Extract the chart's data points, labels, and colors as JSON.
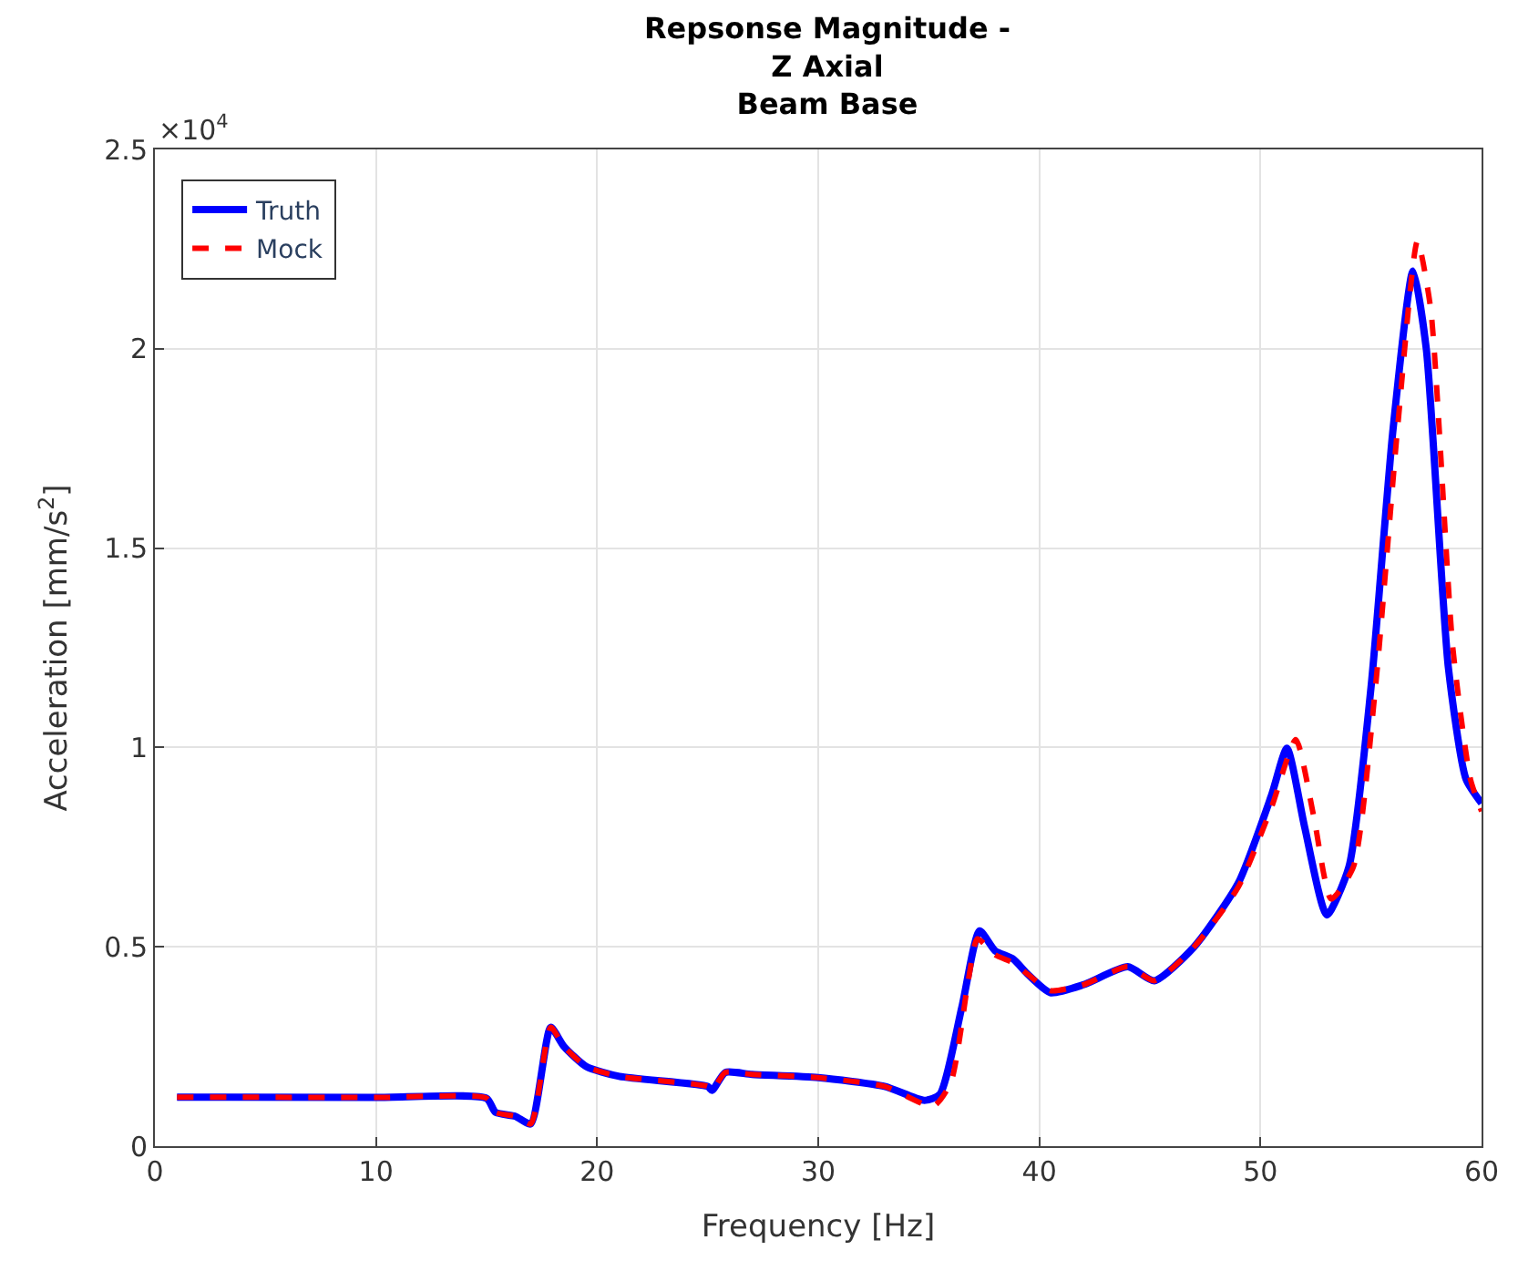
{
  "chart_data": {
    "type": "line",
    "title": "Repsonse Magnitude -\nZ Axial\nBeam Base",
    "xlabel": "Frequency [Hz]",
    "ylabel": "Acceleration [mm/s$^{2}$]",
    "annotations": [
      "×10$^{4}$"
    ],
    "xlim": [
      0,
      60
    ],
    "xticks": [
      0,
      10,
      20,
      30,
      40,
      50,
      60
    ],
    "ylim": [
      0,
      2.5
    ],
    "yticks": [
      0,
      0.5,
      1,
      1.5,
      2,
      2.5
    ],
    "grid": true,
    "legend": "top left",
    "series": [
      {
        "name": "Truth",
        "color": "#0000ff",
        "line_style": "solid",
        "x": [
          1,
          10,
          15,
          15.4,
          16.3,
          17.0,
          17.9,
          18.5,
          19.5,
          21,
          25,
          25.2,
          25.8,
          27,
          30,
          33,
          34.8,
          35.5,
          36.5,
          37.3,
          38,
          38.8,
          39.5,
          40.5,
          42,
          44,
          45.2,
          47,
          49,
          50.5,
          51.2,
          52,
          53,
          54,
          55,
          56,
          56.9,
          57.5,
          58.5,
          59.3,
          60
        ],
        "values": [
          0.123,
          0.122,
          0.12,
          0.085,
          0.075,
          0.056,
          0.298,
          0.25,
          0.2,
          0.175,
          0.15,
          0.14,
          0.185,
          0.18,
          0.172,
          0.15,
          0.115,
          0.13,
          0.35,
          0.54,
          0.49,
          0.47,
          0.43,
          0.385,
          0.405,
          0.45,
          0.415,
          0.5,
          0.66,
          0.88,
          0.998,
          0.8,
          0.58,
          0.7,
          1.15,
          1.8,
          2.195,
          2.0,
          1.2,
          0.92,
          0.86
        ]
      },
      {
        "name": "Mock",
        "color": "#ff0000",
        "line_style": "dashed",
        "x": [
          1,
          10,
          15,
          15.4,
          16.3,
          17.0,
          17.9,
          18.5,
          19.5,
          21,
          25,
          25.2,
          25.8,
          27,
          30,
          33,
          35.2,
          36,
          36.8,
          37.2,
          38,
          38.8,
          39.5,
          40.5,
          42,
          44,
          45.2,
          47,
          49,
          50.5,
          51.6,
          52.4,
          53.2,
          54.2,
          55.2,
          56.2,
          57.1,
          57.7,
          58.7,
          59.5,
          60
        ],
        "values": [
          0.123,
          0.122,
          0.12,
          0.085,
          0.075,
          0.056,
          0.298,
          0.25,
          0.2,
          0.175,
          0.15,
          0.14,
          0.185,
          0.18,
          0.172,
          0.15,
          0.1,
          0.16,
          0.42,
          0.52,
          0.48,
          0.46,
          0.43,
          0.39,
          0.405,
          0.45,
          0.415,
          0.5,
          0.65,
          0.85,
          1.02,
          0.83,
          0.62,
          0.7,
          1.15,
          1.8,
          2.27,
          2.1,
          1.25,
          0.92,
          0.84
        ]
      }
    ]
  }
}
